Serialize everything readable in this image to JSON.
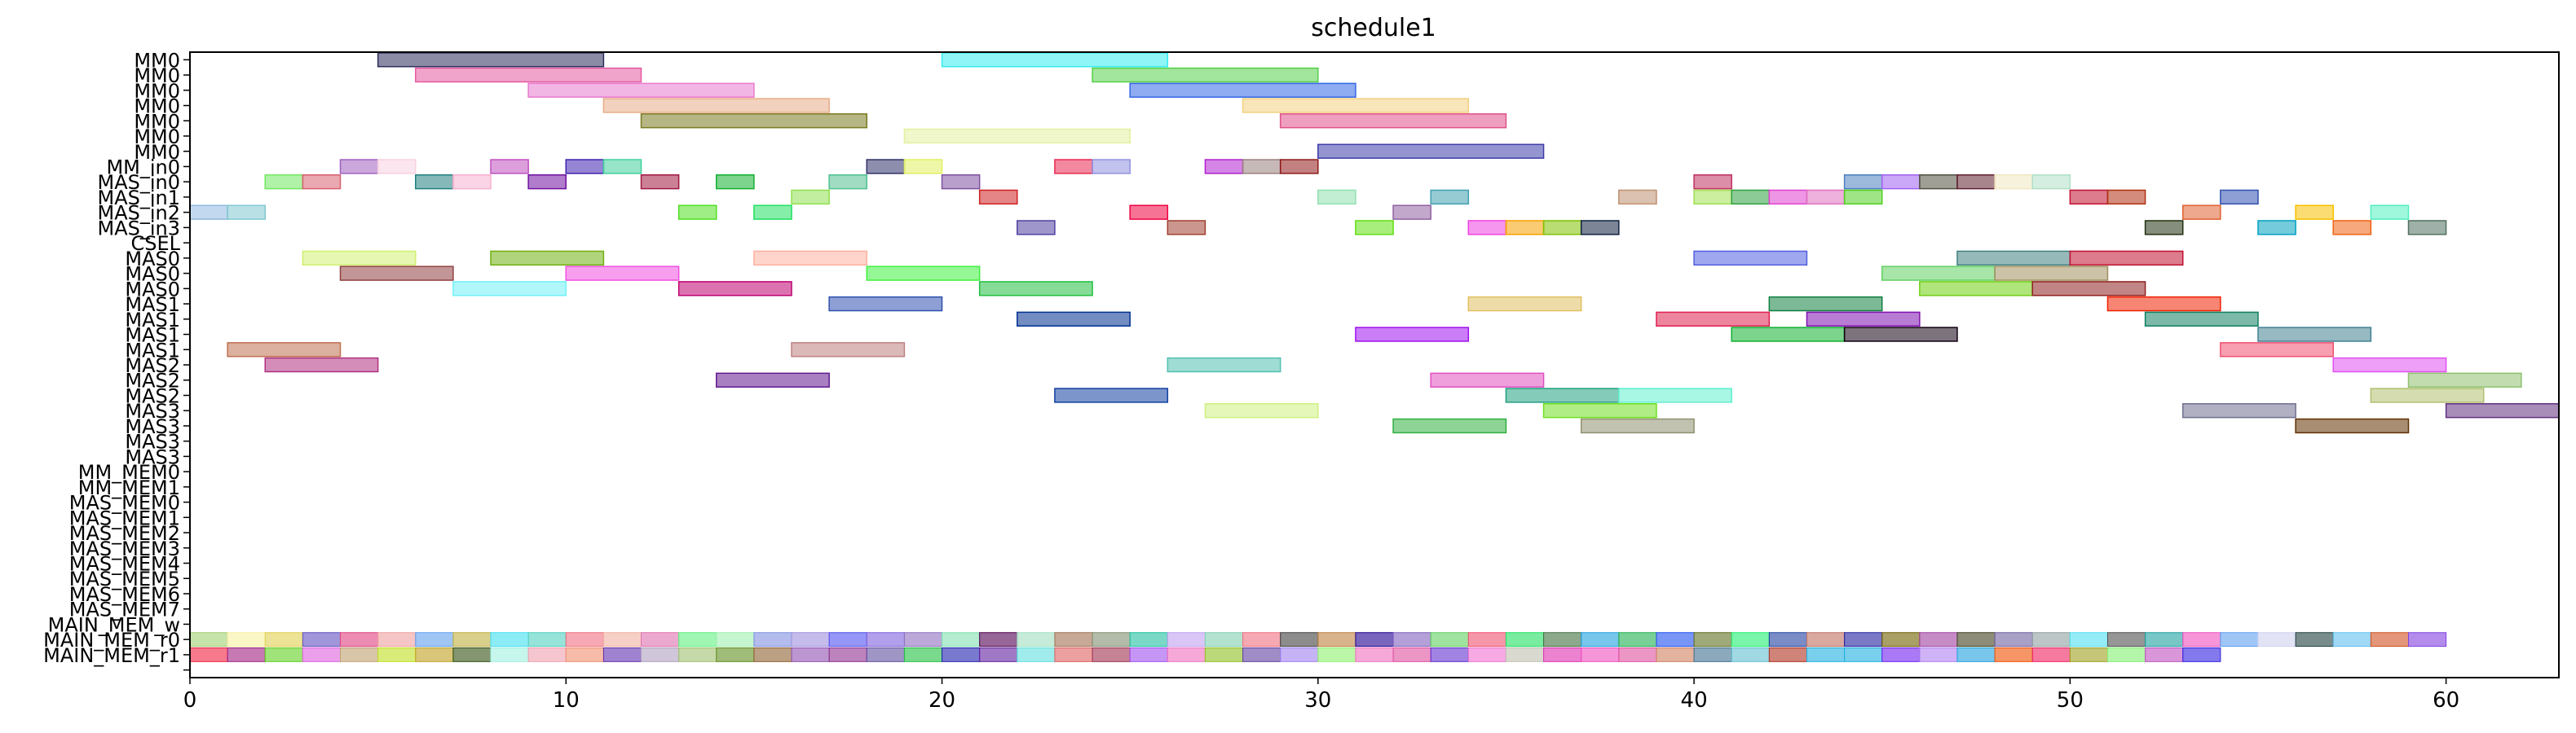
{
  "chart_data": {
    "type": "gantt",
    "title": "schedule1",
    "xlabel": "",
    "ylabel": "",
    "xlim": [
      0,
      63
    ],
    "x_ticks": [
      0,
      10,
      20,
      30,
      40,
      50,
      60
    ],
    "rows": [
      "MM0",
      "MM0",
      "MM0",
      "MM0",
      "MM0",
      "MM0",
      "MM0",
      "MM_in0",
      "MAS_in0",
      "MAS_in1",
      "MAS_in2",
      "MAS_in3",
      "CSEL",
      "MAS0",
      "MAS0",
      "MAS0",
      "MAS1",
      "MAS1",
      "MAS1",
      "MAS1",
      "MAS2",
      "MAS2",
      "MAS2",
      "MAS3",
      "MAS3",
      "MAS3",
      "MAS3",
      "MM_MEM0",
      "MM_MEM1",
      "MAS_MEM0",
      "MAS_MEM1",
      "MAS_MEM2",
      "MAS_MEM3",
      "MAS_MEM4",
      "MAS_MEM5",
      "MAS_MEM6",
      "MAS_MEM7",
      "MAIN_MEM_w",
      "MAIN_MEM_r0",
      "MAIN_MEM_r1",
      ""
    ],
    "tasks": [
      {
        "row": 0,
        "start": 5,
        "end": 11,
        "color": "#2c2c5c"
      },
      {
        "row": 0,
        "start": 20,
        "end": 26,
        "color": "#33ecf0"
      },
      {
        "row": 1,
        "start": 6,
        "end": 12,
        "color": "#e65aa0"
      },
      {
        "row": 1,
        "start": 24,
        "end": 30,
        "color": "#55d04a"
      },
      {
        "row": 2,
        "start": 9,
        "end": 15,
        "color": "#e87ad0"
      },
      {
        "row": 2,
        "start": 25,
        "end": 31,
        "color": "#3366e6"
      },
      {
        "row": 3,
        "start": 11,
        "end": 17,
        "color": "#e8ad88"
      },
      {
        "row": 3,
        "start": 28,
        "end": 34,
        "color": "#f2d080"
      },
      {
        "row": 4,
        "start": 12,
        "end": 18,
        "color": "#7a7a20"
      },
      {
        "row": 4,
        "start": 29,
        "end": 35,
        "color": "#e0508a"
      },
      {
        "row": 5,
        "start": 19,
        "end": 25,
        "color": "#e4f0a0"
      },
      {
        "row": 6,
        "start": 30,
        "end": 36,
        "color": "#3c3caa"
      },
      {
        "row": 7,
        "start": 4,
        "end": 5,
        "color": "#a060c0"
      },
      {
        "row": 7,
        "start": 5,
        "end": 6,
        "color": "#f8d0e0"
      },
      {
        "row": 7,
        "start": 8,
        "end": 9,
        "color": "#c050c0"
      },
      {
        "row": 7,
        "start": 10,
        "end": 11,
        "color": "#4020b0"
      },
      {
        "row": 7,
        "start": 11,
        "end": 12,
        "color": "#40d09a"
      },
      {
        "row": 7,
        "start": 18,
        "end": 19,
        "color": "#30306a"
      },
      {
        "row": 7,
        "start": 19,
        "end": 20,
        "color": "#e0f060"
      },
      {
        "row": 7,
        "start": 23,
        "end": 24,
        "color": "#e82850"
      },
      {
        "row": 7,
        "start": 24,
        "end": 25,
        "color": "#9090e0"
      },
      {
        "row": 7,
        "start": 27,
        "end": 28,
        "color": "#b020d0"
      },
      {
        "row": 7,
        "start": 28,
        "end": 29,
        "color": "#9a8080"
      },
      {
        "row": 7,
        "start": 29,
        "end": 30,
        "color": "#901818"
      },
      {
        "row": 8,
        "start": 2,
        "end": 3,
        "color": "#70e860"
      },
      {
        "row": 8,
        "start": 3,
        "end": 4,
        "color": "#d86070"
      },
      {
        "row": 8,
        "start": 6,
        "end": 7,
        "color": "#208080"
      },
      {
        "row": 8,
        "start": 7,
        "end": 8,
        "color": "#f8b0d0"
      },
      {
        "row": 8,
        "start": 9,
        "end": 10,
        "color": "#7010a0"
      },
      {
        "row": 8,
        "start": 12,
        "end": 13,
        "color": "#a01840"
      },
      {
        "row": 8,
        "start": 14,
        "end": 15,
        "color": "#10b030"
      },
      {
        "row": 8,
        "start": 17,
        "end": 18,
        "color": "#50c090"
      },
      {
        "row": 8,
        "start": 20,
        "end": 21,
        "color": "#8050a0"
      },
      {
        "row": 8,
        "start": 40,
        "end": 41,
        "color": "#c03060"
      },
      {
        "row": 8,
        "start": 44,
        "end": 45,
        "color": "#4a80c0"
      },
      {
        "row": 8,
        "start": 45,
        "end": 46,
        "color": "#a060f0"
      },
      {
        "row": 8,
        "start": 46,
        "end": 47,
        "color": "#505040"
      },
      {
        "row": 8,
        "start": 47,
        "end": 48,
        "color": "#602030"
      },
      {
        "row": 8,
        "start": 48,
        "end": 49,
        "color": "#f0e8c0"
      },
      {
        "row": 8,
        "start": 49,
        "end": 50,
        "color": "#b0e0c8"
      },
      {
        "row": 9,
        "start": 16,
        "end": 17,
        "color": "#90e050"
      },
      {
        "row": 9,
        "start": 21,
        "end": 22,
        "color": "#d02020"
      },
      {
        "row": 9,
        "start": 30,
        "end": 31,
        "color": "#90e0b0"
      },
      {
        "row": 9,
        "start": 33,
        "end": 34,
        "color": "#40a0b0"
      },
      {
        "row": 9,
        "start": 38,
        "end": 39,
        "color": "#c09070"
      },
      {
        "row": 9,
        "start": 40,
        "end": 41,
        "color": "#a0e050"
      },
      {
        "row": 9,
        "start": 41,
        "end": 42,
        "color": "#30a040"
      },
      {
        "row": 9,
        "start": 42,
        "end": 43,
        "color": "#e040d0"
      },
      {
        "row": 9,
        "start": 43,
        "end": 44,
        "color": "#e070c0"
      },
      {
        "row": 9,
        "start": 44,
        "end": 45,
        "color": "#50d020"
      },
      {
        "row": 9,
        "start": 50,
        "end": 51,
        "color": "#c01030"
      },
      {
        "row": 9,
        "start": 51,
        "end": 52,
        "color": "#b03010"
      },
      {
        "row": 9,
        "start": 54,
        "end": 55,
        "color": "#3050b0"
      },
      {
        "row": 10,
        "start": 0,
        "end": 1,
        "color": "#90b8e0"
      },
      {
        "row": 10,
        "start": 1,
        "end": 2,
        "color": "#80c8d0"
      },
      {
        "row": 10,
        "start": 13,
        "end": 14,
        "color": "#50e020"
      },
      {
        "row": 10,
        "start": 15,
        "end": 16,
        "color": "#20e060"
      },
      {
        "row": 10,
        "start": 25,
        "end": 26,
        "color": "#f00040"
      },
      {
        "row": 10,
        "start": 32,
        "end": 33,
        "color": "#9060a0"
      },
      {
        "row": 10,
        "start": 53,
        "end": 54,
        "color": "#e06030"
      },
      {
        "row": 10,
        "start": 56,
        "end": 57,
        "color": "#f8c000"
      },
      {
        "row": 10,
        "start": 58,
        "end": 59,
        "color": "#50f0c0"
      },
      {
        "row": 11,
        "start": 22,
        "end": 23,
        "color": "#5040a0"
      },
      {
        "row": 11,
        "start": 26,
        "end": 27,
        "color": "#a04030"
      },
      {
        "row": 11,
        "start": 31,
        "end": 32,
        "color": "#60e010"
      },
      {
        "row": 11,
        "start": 34,
        "end": 35,
        "color": "#f040e0"
      },
      {
        "row": 11,
        "start": 35,
        "end": 36,
        "color": "#f8a000"
      },
      {
        "row": 11,
        "start": 36,
        "end": 37,
        "color": "#80c000"
      },
      {
        "row": 11,
        "start": 37,
        "end": 38,
        "color": "#102040"
      },
      {
        "row": 11,
        "start": 52,
        "end": 53,
        "color": "#203010"
      },
      {
        "row": 11,
        "start": 55,
        "end": 56,
        "color": "#00a0c0"
      },
      {
        "row": 11,
        "start": 57,
        "end": 58,
        "color": "#f06010"
      },
      {
        "row": 11,
        "start": 59,
        "end": 60,
        "color": "#507060"
      },
      {
        "row": 13,
        "start": 3,
        "end": 6,
        "color": "#d0f070"
      },
      {
        "row": 13,
        "start": 8,
        "end": 11,
        "color": "#70b010"
      },
      {
        "row": 13,
        "start": 15,
        "end": 18,
        "color": "#ffb0a0"
      },
      {
        "row": 13,
        "start": 40,
        "end": 43,
        "color": "#5060e0"
      },
      {
        "row": 13,
        "start": 47,
        "end": 50,
        "color": "#408080"
      },
      {
        "row": 13,
        "start": 50,
        "end": 53,
        "color": "#c01030"
      },
      {
        "row": 14,
        "start": 4,
        "end": 7,
        "color": "#904040"
      },
      {
        "row": 14,
        "start": 10,
        "end": 13,
        "color": "#f050e0"
      },
      {
        "row": 14,
        "start": 18,
        "end": 21,
        "color": "#40f040"
      },
      {
        "row": 14,
        "start": 45,
        "end": 48,
        "color": "#60d060"
      },
      {
        "row": 14,
        "start": 48,
        "end": 51,
        "color": "#a09060"
      },
      {
        "row": 15,
        "start": 7,
        "end": 10,
        "color": "#70f0f8"
      },
      {
        "row": 15,
        "start": 13,
        "end": 16,
        "color": "#c00070"
      },
      {
        "row": 15,
        "start": 21,
        "end": 24,
        "color": "#20c040"
      },
      {
        "row": 15,
        "start": 46,
        "end": 49,
        "color": "#70d010"
      },
      {
        "row": 15,
        "start": 49,
        "end": 52,
        "color": "#902020"
      },
      {
        "row": 16,
        "start": 17,
        "end": 20,
        "color": "#3050b0"
      },
      {
        "row": 16,
        "start": 34,
        "end": 37,
        "color": "#e0c060"
      },
      {
        "row": 16,
        "start": 42,
        "end": 45,
        "color": "#108040"
      },
      {
        "row": 16,
        "start": 51,
        "end": 54,
        "color": "#f02000"
      },
      {
        "row": 17,
        "start": 22,
        "end": 25,
        "color": "#003090"
      },
      {
        "row": 17,
        "start": 39,
        "end": 42,
        "color": "#e02050"
      },
      {
        "row": 17,
        "start": 43,
        "end": 46,
        "color": "#8010b0"
      },
      {
        "row": 17,
        "start": 52,
        "end": 55,
        "color": "#108060"
      },
      {
        "row": 18,
        "start": 31,
        "end": 34,
        "color": "#a010f0"
      },
      {
        "row": 18,
        "start": 41,
        "end": 44,
        "color": "#10b030"
      },
      {
        "row": 18,
        "start": 44,
        "end": 47,
        "color": "#100010"
      },
      {
        "row": 18,
        "start": 55,
        "end": 58,
        "color": "#408090"
      },
      {
        "row": 19,
        "start": 1,
        "end": 4,
        "color": "#c07050"
      },
      {
        "row": 19,
        "start": 16,
        "end": 19,
        "color": "#c08080"
      },
      {
        "row": 19,
        "start": 54,
        "end": 57,
        "color": "#f05070"
      },
      {
        "row": 20,
        "start": 2,
        "end": 5,
        "color": "#b03080"
      },
      {
        "row": 20,
        "start": 26,
        "end": 29,
        "color": "#50c0b0"
      },
      {
        "row": 20,
        "start": 57,
        "end": 60,
        "color": "#e050f0"
      },
      {
        "row": 21,
        "start": 14,
        "end": 17,
        "color": "#601890"
      },
      {
        "row": 21,
        "start": 33,
        "end": 36,
        "color": "#e050c0"
      },
      {
        "row": 21,
        "start": 59,
        "end": 62,
        "color": "#90c070"
      },
      {
        "row": 22,
        "start": 23,
        "end": 26,
        "color": "#1040a0"
      },
      {
        "row": 22,
        "start": 35,
        "end": 38,
        "color": "#20a080"
      },
      {
        "row": 22,
        "start": 38,
        "end": 41,
        "color": "#60f0d0"
      },
      {
        "row": 22,
        "start": 58,
        "end": 61,
        "color": "#b0c070"
      },
      {
        "row": 23,
        "start": 27,
        "end": 30,
        "color": "#d0f080"
      },
      {
        "row": 23,
        "start": 36,
        "end": 39,
        "color": "#70e020"
      },
      {
        "row": 23,
        "start": 53,
        "end": 56,
        "color": "#707090"
      },
      {
        "row": 23,
        "start": 60,
        "end": 63,
        "color": "#603080"
      },
      {
        "row": 24,
        "start": 32,
        "end": 35,
        "color": "#30b040"
      },
      {
        "row": 24,
        "start": 37,
        "end": 40,
        "color": "#909070"
      },
      {
        "row": 24,
        "start": 56,
        "end": 59,
        "color": "#603000"
      }
    ],
    "mem_rows": [
      {
        "row": 38,
        "colors": [
          "#a0d070",
          "#f8f0a0",
          "#e0d050",
          "#6050c0",
          "#e04080",
          "#f0a0a0",
          "#60a0f0",
          "#c0b040",
          "#40e0f0",
          "#50d0c0",
          "#f07080",
          "#f0b0a0",
          "#e070b0",
          "#60f080",
          "#a0f0b0",
          "#8090e0",
          "#a090e0",
          "#5050f0",
          "#8060e0",
          "#9070c0",
          "#80e0b0",
          "#500050",
          "#a0e0c0",
          "#a07050",
          "#809070",
          "#20c0a0",
          "#c0a0f0",
          "#80d0b0",
          "#f07080",
          "#404040",
          "#c08040",
          "#200090",
          "#8060c0",
          "#60d060",
          "#f05070",
          "#20e060",
          "#407040",
          "#20a0e0",
          "#20b050",
          "#2050f0",
          "#607020",
          "#20f070",
          "#2040a0",
          "#c07060",
          "#2020a0",
          "#706000",
          "#a040a0",
          "#404020",
          "#7060a0",
          "#90a0a0",
          "#50e0f0",
          "#505050",
          "#20a0a0",
          "#f050c0",
          "#60a0f0",
          "#d0d0f0",
          "#204040",
          "#60c0f0",
          "#d05020",
          "#8040e0"
        ]
      },
      {
        "row": 39,
        "colors": [
          "#f02040",
          "#a02080",
          "#60d020",
          "#e060e0",
          "#c0a070",
          "#c0e020",
          "#c0a020",
          "#305010",
          "#a0f0e0",
          "#f0a0b0",
          "#f09070",
          "#6030b0",
          "#b0a0c0",
          "#a0c070",
          "#609020",
          "#906030",
          "#9050b0",
          "#903090",
          "#6050a0",
          "#20c040",
          "#2020b0",
          "#6020a0",
          "#60e0e0",
          "#e06060",
          "#a03050",
          "#a050f0",
          "#f070c0",
          "#90c020",
          "#6040a0",
          "#a080f0",
          "#90f070",
          "#f070c0",
          "#e050a0",
          "#6030d0",
          "#f070d0",
          "#c0c0b0",
          "#e030b0",
          "#f050c0",
          "#e050a0",
          "#d08060",
          "#407090",
          "#60c0d0",
          "#b03020",
          "#20b0e0",
          "#20b0e0",
          "#7020f0",
          "#b080f0",
          "#20a0e0",
          "#f05000",
          "#f02060",
          "#a0a020",
          "#80f070",
          "#c050c0",
          "#3020e0"
        ]
      }
    ]
  }
}
